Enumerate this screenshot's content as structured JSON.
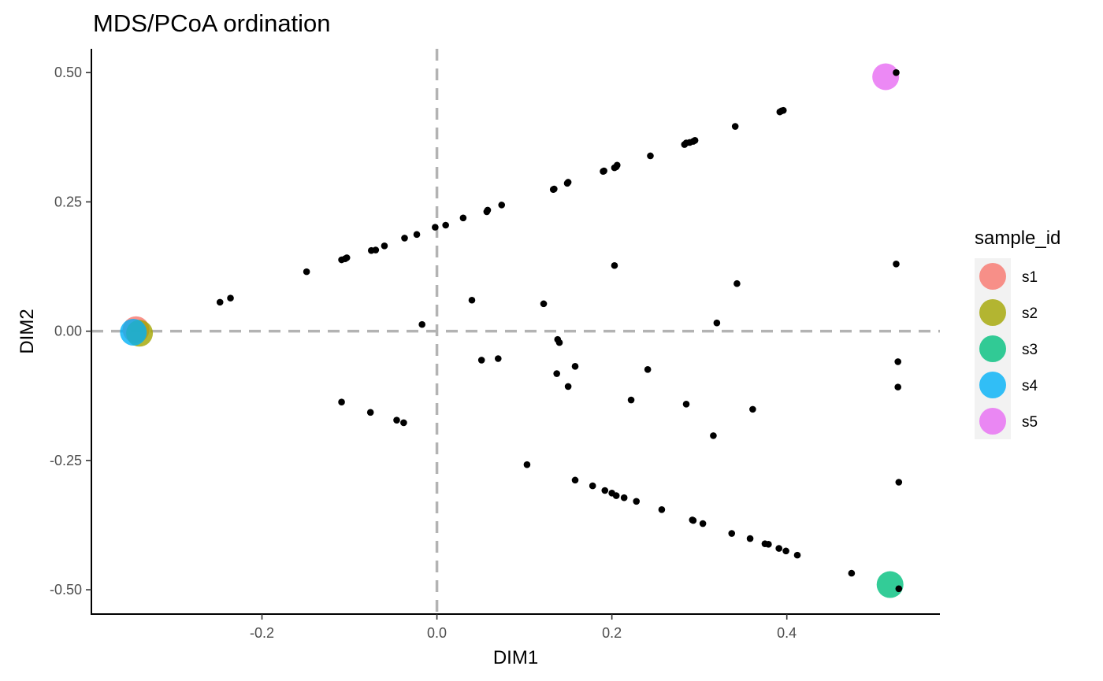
{
  "chart_data": {
    "type": "scatter",
    "title": "MDS/PCoA ordination",
    "xlabel": "DIM1",
    "ylabel": "DIM2",
    "xlim": [
      -0.395,
      0.575
    ],
    "ylim": [
      -0.547,
      0.546
    ],
    "x_ticks": [
      -0.2,
      0.0,
      0.2,
      0.4
    ],
    "x_tick_labels": [
      "-0.2",
      "0.0",
      "0.2",
      "0.4"
    ],
    "y_ticks": [
      -0.5,
      -0.25,
      0.0,
      0.25,
      0.5
    ],
    "y_tick_labels": [
      "-0.50",
      "-0.25",
      "0.00",
      "0.25",
      "0.50"
    ],
    "reference_lines": {
      "x": 0,
      "y": 0,
      "style": "dashed",
      "color": "#b3b3b3"
    },
    "grid": false,
    "legend": {
      "title": "sample_id",
      "position": "right",
      "entries": [
        {
          "label": "s1",
          "color": "#F8766D"
        },
        {
          "label": "s2",
          "color": "#A3A500"
        },
        {
          "label": "s3",
          "color": "#00BF7D"
        },
        {
          "label": "s4",
          "color": "#00B0F6"
        },
        {
          "label": "s5",
          "color": "#E76BF3"
        }
      ]
    },
    "sample_points": [
      {
        "label": "s1",
        "x": -0.344,
        "y": 0.003
      },
      {
        "label": "s2",
        "x": -0.34,
        "y": -0.004
      },
      {
        "label": "s3",
        "x": 0.518,
        "y": -0.49
      },
      {
        "label": "s4",
        "x": -0.347,
        "y": -0.002
      },
      {
        "label": "s5",
        "x": 0.513,
        "y": 0.492
      }
    ],
    "feature_points": [
      [
        -0.248,
        0.056
      ],
      [
        -0.236,
        0.064
      ],
      [
        -0.149,
        0.115
      ],
      [
        -0.109,
        0.138
      ],
      [
        -0.105,
        0.14
      ],
      [
        -0.103,
        0.142
      ],
      [
        -0.075,
        0.156
      ],
      [
        -0.07,
        0.157
      ],
      [
        -0.06,
        0.165
      ],
      [
        -0.037,
        0.18
      ],
      [
        -0.023,
        0.187
      ],
      [
        -0.002,
        0.201
      ],
      [
        0.01,
        0.205
      ],
      [
        0.03,
        0.219
      ],
      [
        0.057,
        0.231
      ],
      [
        0.058,
        0.234
      ],
      [
        0.074,
        0.244
      ],
      [
        0.133,
        0.274
      ],
      [
        0.134,
        0.275
      ],
      [
        0.149,
        0.286
      ],
      [
        0.15,
        0.288
      ],
      [
        0.19,
        0.309
      ],
      [
        0.191,
        0.31
      ],
      [
        0.203,
        0.316
      ],
      [
        0.205,
        0.318
      ],
      [
        0.206,
        0.321
      ],
      [
        0.244,
        0.339
      ],
      [
        0.283,
        0.361
      ],
      [
        0.285,
        0.364
      ],
      [
        0.289,
        0.365
      ],
      [
        0.293,
        0.367
      ],
      [
        0.295,
        0.369
      ],
      [
        0.341,
        0.396
      ],
      [
        0.392,
        0.424
      ],
      [
        0.394,
        0.426
      ],
      [
        0.396,
        0.427
      ],
      [
        0.525,
        0.5
      ],
      [
        -0.017,
        0.013
      ],
      [
        0.04,
        0.06
      ],
      [
        0.122,
        0.053
      ],
      [
        0.203,
        0.127
      ],
      [
        0.343,
        0.092
      ],
      [
        0.32,
        0.016
      ],
      [
        0.525,
        0.13
      ],
      [
        0.138,
        -0.016
      ],
      [
        0.14,
        -0.022
      ],
      [
        0.051,
        -0.056
      ],
      [
        0.07,
        -0.053
      ],
      [
        0.137,
        -0.082
      ],
      [
        0.158,
        -0.068
      ],
      [
        0.15,
        -0.107
      ],
      [
        0.241,
        -0.074
      ],
      [
        0.222,
        -0.133
      ],
      [
        0.285,
        -0.141
      ],
      [
        0.361,
        -0.151
      ],
      [
        0.316,
        -0.202
      ],
      [
        0.527,
        -0.059
      ],
      [
        0.527,
        -0.108
      ],
      [
        -0.109,
        -0.137
      ],
      [
        -0.076,
        -0.157
      ],
      [
        -0.046,
        -0.172
      ],
      [
        -0.038,
        -0.177
      ],
      [
        0.103,
        -0.258
      ],
      [
        0.158,
        -0.288
      ],
      [
        0.178,
        -0.299
      ],
      [
        0.192,
        -0.308
      ],
      [
        0.2,
        -0.313
      ],
      [
        0.205,
        -0.318
      ],
      [
        0.214,
        -0.322
      ],
      [
        0.228,
        -0.329
      ],
      [
        0.257,
        -0.345
      ],
      [
        0.292,
        -0.365
      ],
      [
        0.293,
        -0.366
      ],
      [
        0.304,
        -0.372
      ],
      [
        0.337,
        -0.391
      ],
      [
        0.358,
        -0.401
      ],
      [
        0.375,
        -0.411
      ],
      [
        0.379,
        -0.412
      ],
      [
        0.391,
        -0.42
      ],
      [
        0.399,
        -0.425
      ],
      [
        0.412,
        -0.433
      ],
      [
        0.474,
        -0.468
      ],
      [
        0.528,
        -0.498
      ],
      [
        0.528,
        -0.292
      ]
    ]
  }
}
